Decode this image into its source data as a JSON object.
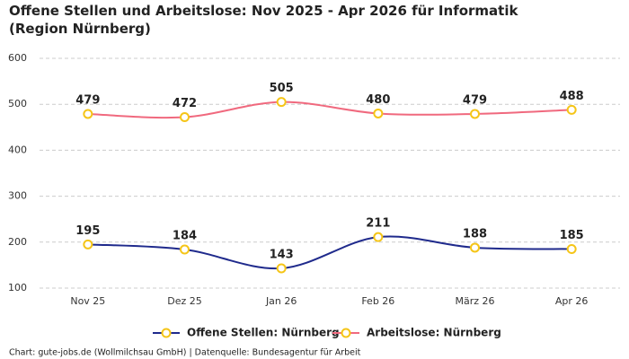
{
  "chart_data": {
    "type": "line",
    "title": "Offene Stellen und Arbeitslose: Nov 2025 - Apr 2026 für Informatik (Region Nürnberg)",
    "categories": [
      "Nov 25",
      "Dez 25",
      "Jan 26",
      "Feb 26",
      "März 26",
      "Apr 26"
    ],
    "series": [
      {
        "name": "Offene Stellen: Nürnberg",
        "color": "#1f2a8c",
        "values": [
          195,
          184,
          143,
          211,
          188,
          185
        ]
      },
      {
        "name": "Arbeitslose: Nürnberg",
        "color": "#f0697e",
        "values": [
          479,
          472,
          505,
          480,
          479,
          488
        ]
      }
    ],
    "marker_color": "#f5c518",
    "ylim": [
      100,
      600
    ],
    "yticks": [
      100,
      200,
      300,
      400,
      500,
      600
    ],
    "grid": true,
    "legend": "bottom",
    "source": "Chart: gute-jobs.de (Wollmilchsau GmbH) | Datenquelle: Bundesagentur für Arbeit"
  }
}
